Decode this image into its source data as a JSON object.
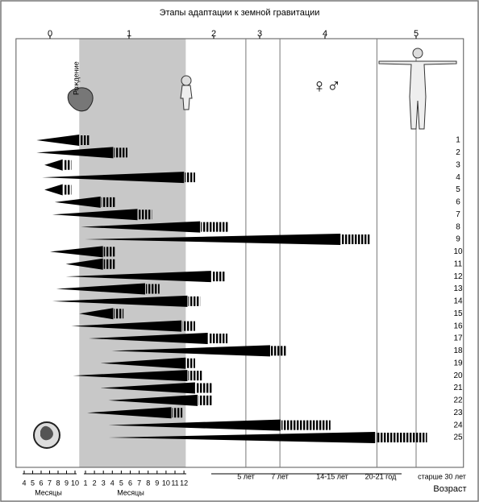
{
  "chart_data": {
    "type": "wedge",
    "title": "Этапы адаптации к земной гравитации",
    "xlim": [
      -0.43,
      5.52
    ],
    "xticks": [
      0,
      1,
      2,
      3,
      4,
      5
    ],
    "categories": [
      "1",
      "2",
      "3",
      "4",
      "5",
      "6",
      "7",
      "8",
      "9",
      "10",
      "11",
      "12",
      "13",
      "14",
      "15",
      "16",
      "17",
      "18",
      "19",
      "20",
      "21",
      "22",
      "23",
      "24",
      "25"
    ],
    "start": [
      -0.17,
      -0.17,
      -0.07,
      -0.1,
      -0.07,
      0.06,
      0.03,
      0.39,
      0.44,
      0.0,
      0.2,
      0.2,
      0.08,
      0.03,
      0.37,
      0.27,
      0.49,
      0.78,
      0.64,
      0.29,
      0.64,
      0.74,
      0.47,
      0.74,
      0.74
    ],
    "solid_end": [
      0.37,
      0.8,
      0.16,
      1.65,
      0.16,
      0.64,
      1.1,
      1.84,
      4.17,
      0.67,
      0.67,
      1.97,
      1.19,
      1.69,
      0.8,
      1.62,
      1.93,
      3.16,
      1.67,
      1.69,
      1.78,
      1.81,
      1.5,
      3.32,
      4.55
    ],
    "end": [
      0.51,
      0.98,
      0.27,
      1.78,
      0.27,
      0.83,
      1.27,
      2.33,
      4.49,
      0.82,
      0.82,
      2.26,
      1.36,
      1.84,
      0.93,
      1.78,
      2.3,
      3.41,
      1.78,
      1.86,
      1.99,
      1.99,
      1.63,
      4.06,
      5.12
    ],
    "shaded_region": [
      0.37,
      1.67
    ],
    "reference_lines": [
      2.7,
      3.31,
      4.57,
      5
    ],
    "birth_label": "Рождение",
    "sex_symbols": "♀♂",
    "months_before": [
      "4",
      "5",
      "6",
      "7",
      "8",
      "9",
      "10"
    ],
    "months_after": [
      "1",
      "2",
      "3",
      "4",
      "5",
      "6",
      "7",
      "8",
      "9",
      "10",
      "11",
      "12"
    ],
    "months_label": "Месяцы",
    "age_labels": [
      "5 лет",
      "7 лет",
      "14-15 лет",
      "20-21 год",
      "старше 30 лет"
    ],
    "age_axis_label": "Возраст"
  }
}
